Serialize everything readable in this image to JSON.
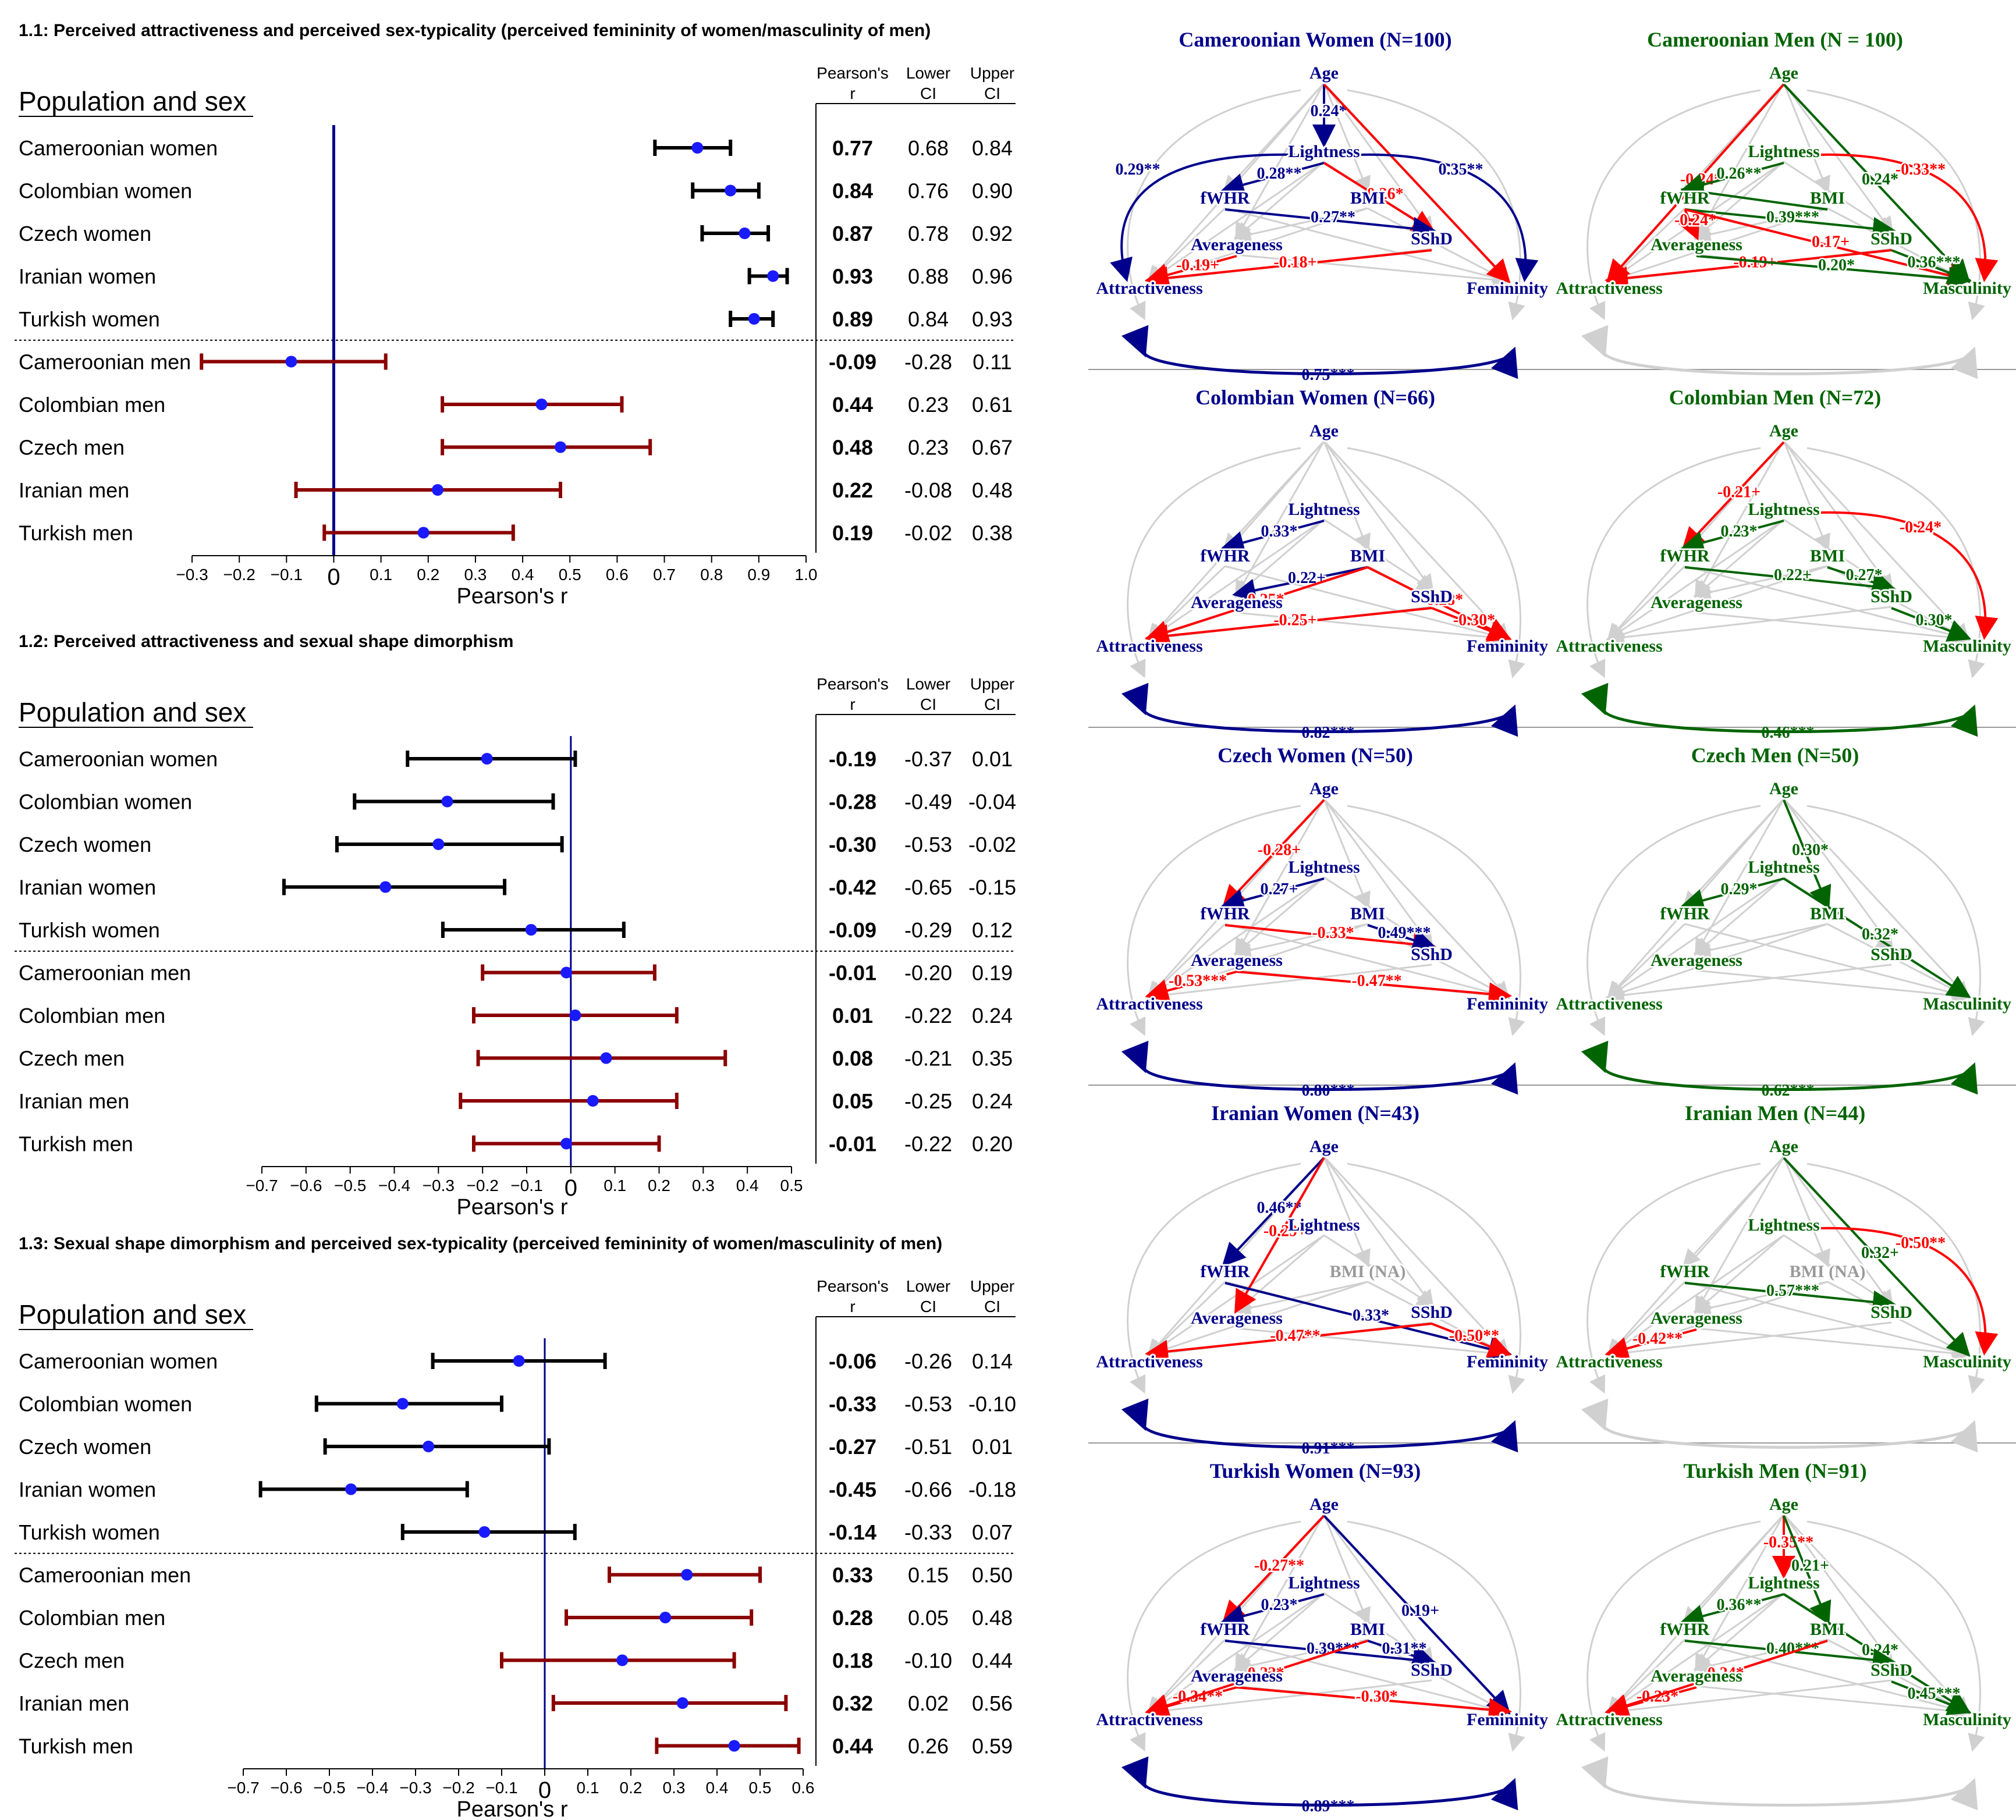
{
  "forest_panels": [
    {
      "title": "1.1: Perceived attractiveness and perceived sex-typicality (perceived femininity of women/masculinity of men)",
      "heading": "Population and sex",
      "xlabel": "Pearson's r",
      "xmin": -0.3,
      "xmax": 1.0,
      "ticks": [
        "−0.3",
        "−0.2",
        "−0.1",
        "0",
        "0.1",
        "0.2",
        "0.3",
        "0.4",
        "0.5",
        "0.6",
        "0.7",
        "0.8",
        "0.9",
        "1.0"
      ],
      "col_r": [
        "Pearson's",
        "r"
      ],
      "col_lo": [
        "Lower",
        "CI"
      ],
      "col_hi": [
        "Upper",
        "CI"
      ],
      "rows": [
        {
          "label": "Cameroonian women",
          "r": "0.77",
          "lo": "0.68",
          "hi": "0.84",
          "sex": "f"
        },
        {
          "label": "Colombian women",
          "r": "0.84",
          "lo": "0.76",
          "hi": "0.90",
          "sex": "f"
        },
        {
          "label": "Czech women",
          "r": "0.87",
          "lo": "0.78",
          "hi": "0.92",
          "sex": "f"
        },
        {
          "label": "Iranian women",
          "r": "0.93",
          "lo": "0.88",
          "hi": "0.96",
          "sex": "f"
        },
        {
          "label": "Turkish women",
          "r": "0.89",
          "lo": "0.84",
          "hi": "0.93",
          "sex": "f"
        },
        {
          "label": "Cameroonian men",
          "r": "-0.09",
          "lo": "-0.28",
          "hi": "0.11",
          "sex": "m"
        },
        {
          "label": "Colombian men",
          "r": "0.44",
          "lo": "0.23",
          "hi": "0.61",
          "sex": "m"
        },
        {
          "label": "Czech men",
          "r": "0.48",
          "lo": "0.23",
          "hi": "0.67",
          "sex": "m"
        },
        {
          "label": "Iranian men",
          "r": "0.22",
          "lo": "-0.08",
          "hi": "0.48",
          "sex": "m"
        },
        {
          "label": "Turkish men",
          "r": "0.19",
          "lo": "-0.02",
          "hi": "0.38",
          "sex": "m"
        }
      ]
    },
    {
      "title": "1.2: Perceived attractiveness and sexual shape dimorphism",
      "heading": "Population and sex",
      "xlabel": "Pearson's r",
      "xmin": -0.7,
      "xmax": 0.5,
      "ticks": [
        "−0.7",
        "−0.6",
        "−0.5",
        "−0.4",
        "−0.3",
        "−0.2",
        "−0.1",
        "0",
        "0.1",
        "0.2",
        "0.3",
        "0.4",
        "0.5"
      ],
      "col_r": [
        "Pearson's",
        "r"
      ],
      "col_lo": [
        "Lower",
        "CI"
      ],
      "col_hi": [
        "Upper",
        "CI"
      ],
      "rows": [
        {
          "label": "Cameroonian women",
          "r": "-0.19",
          "lo": "-0.37",
          "hi": "0.01",
          "sex": "f"
        },
        {
          "label": "Colombian women",
          "r": "-0.28",
          "lo": "-0.49",
          "hi": "-0.04",
          "sex": "f"
        },
        {
          "label": "Czech women",
          "r": "-0.30",
          "lo": "-0.53",
          "hi": "-0.02",
          "sex": "f"
        },
        {
          "label": "Iranian women",
          "r": "-0.42",
          "lo": "-0.65",
          "hi": "-0.15",
          "sex": "f"
        },
        {
          "label": "Turkish women",
          "r": "-0.09",
          "lo": "-0.29",
          "hi": "0.12",
          "sex": "f"
        },
        {
          "label": "Cameroonian men",
          "r": "-0.01",
          "lo": "-0.20",
          "hi": "0.19",
          "sex": "m"
        },
        {
          "label": "Colombian men",
          "r": "0.01",
          "lo": "-0.22",
          "hi": "0.24",
          "sex": "m"
        },
        {
          "label": "Czech men",
          "r": "0.08",
          "lo": "-0.21",
          "hi": "0.35",
          "sex": "m"
        },
        {
          "label": "Iranian men",
          "r": "0.05",
          "lo": "-0.25",
          "hi": "0.24",
          "sex": "m"
        },
        {
          "label": "Turkish men",
          "r": "-0.01",
          "lo": "-0.22",
          "hi": "0.20",
          "sex": "m"
        }
      ]
    },
    {
      "title": "1.3: Sexual shape dimorphism and perceived sex-typicality (perceived femininity of women/masculinity of men)",
      "heading": "Population and sex",
      "xlabel": "Pearson's r",
      "xmin": -0.7,
      "xmax": 0.6,
      "ticks": [
        "−0.7",
        "−0.6",
        "−0.5",
        "−0.4",
        "−0.3",
        "−0.2",
        "−0.1",
        "0",
        "0.1",
        "0.2",
        "0.3",
        "0.4",
        "0.5",
        "0.6"
      ],
      "col_r": [
        "Pearson's",
        "r"
      ],
      "col_lo": [
        "Lower",
        "CI"
      ],
      "col_hi": [
        "Upper",
        "CI"
      ],
      "rows": [
        {
          "label": "Cameroonian women",
          "r": "-0.06",
          "lo": "-0.26",
          "hi": "0.14",
          "sex": "f"
        },
        {
          "label": "Colombian women",
          "r": "-0.33",
          "lo": "-0.53",
          "hi": "-0.10",
          "sex": "f"
        },
        {
          "label": "Czech women",
          "r": "-0.27",
          "lo": "-0.51",
          "hi": "0.01",
          "sex": "f"
        },
        {
          "label": "Iranian women",
          "r": "-0.45",
          "lo": "-0.66",
          "hi": "-0.18",
          "sex": "f"
        },
        {
          "label": "Turkish women",
          "r": "-0.14",
          "lo": "-0.33",
          "hi": "0.07",
          "sex": "f"
        },
        {
          "label": "Cameroonian men",
          "r": "0.33",
          "lo": "0.15",
          "hi": "0.50",
          "sex": "m"
        },
        {
          "label": "Colombian men",
          "r": "0.28",
          "lo": "0.05",
          "hi": "0.48",
          "sex": "m"
        },
        {
          "label": "Czech men",
          "r": "0.18",
          "lo": "-0.10",
          "hi": "0.44",
          "sex": "m"
        },
        {
          "label": "Iranian men",
          "r": "0.32",
          "lo": "0.02",
          "hi": "0.56",
          "sex": "m"
        },
        {
          "label": "Turkish men",
          "r": "0.44",
          "lo": "0.26",
          "hi": "0.59",
          "sex": "m"
        }
      ]
    }
  ],
  "path_diagrams": [
    {
      "title": "Cameroonian Women (N=100)",
      "sex": "f",
      "outcome": "Femininity",
      "bma": "BMI",
      "edges": [
        {
          "from": "age",
          "to": "lightness",
          "label": "0.24*",
          "c": "b"
        },
        {
          "from": "age",
          "to": "outcome",
          "label": "",
          "c": "r"
        },
        {
          "from": "lightness",
          "to": "fwhr",
          "label": "0.28**",
          "c": "b"
        },
        {
          "from": "lightness",
          "to": "attr",
          "label": "0.29**",
          "c": "b",
          "curve": "left"
        },
        {
          "from": "lightness",
          "to": "outcome",
          "label": "0.35**",
          "c": "b",
          "curve": "right"
        },
        {
          "from": "lightness",
          "to": "sshd",
          "label": "-0.26*",
          "c": "r"
        },
        {
          "from": "fwhr",
          "to": "sshd",
          "label": "0.27**",
          "c": "b"
        },
        {
          "from": "avg",
          "to": "attr",
          "label": "-0.19+",
          "c": "r"
        },
        {
          "from": "sshd",
          "to": "attr",
          "label": "-0.18+",
          "c": "r"
        }
      ],
      "cov": "0.75***"
    },
    {
      "title": "Cameroonian Men (N = 100)",
      "sex": "m",
      "outcome": "Masculinity",
      "bma": "BMI",
      "edges": [
        {
          "from": "age",
          "to": "attr",
          "label": "-0.24*",
          "c": "r"
        },
        {
          "from": "age",
          "to": "outcome",
          "label": "0.24*",
          "c": "g"
        },
        {
          "from": "lightness",
          "to": "fwhr",
          "label": "0.26**",
          "c": "g"
        },
        {
          "from": "lightness",
          "to": "outcome",
          "label": "-0.33**",
          "c": "r",
          "curve": "right"
        },
        {
          "from": "bmi",
          "to": "fwhr",
          "label": "",
          "c": "g"
        },
        {
          "from": "fwhr",
          "to": "sshd",
          "label": "0.39***",
          "c": "g"
        },
        {
          "from": "fwhr",
          "to": "avg",
          "label": "-0.24*",
          "c": "r"
        },
        {
          "from": "fwhr",
          "to": "outcome",
          "label": "0.17+",
          "c": "r"
        },
        {
          "from": "sshd",
          "to": "attr",
          "label": "-0.19+",
          "c": "r"
        },
        {
          "from": "sshd",
          "to": "outcome",
          "label": "0.36***",
          "c": "g"
        },
        {
          "from": "avg",
          "to": "outcome",
          "label": "0.20*",
          "c": "g"
        }
      ],
      "cov": ""
    },
    {
      "title": "Colombian Women (N=66)",
      "sex": "f",
      "outcome": "Femininity",
      "bma": "BMI",
      "edges": [
        {
          "from": "lightness",
          "to": "fwhr",
          "label": "0.33*",
          "c": "b"
        },
        {
          "from": "bmi",
          "to": "avg",
          "label": "0.22+",
          "c": "b"
        },
        {
          "from": "sshd",
          "to": "attr",
          "label": "-0.25+",
          "c": "r"
        },
        {
          "from": "bmi",
          "to": "outcome",
          "label": "-0.28*",
          "c": "r"
        },
        {
          "from": "bmi",
          "to": "attr",
          "label": "-0.25*",
          "c": "r"
        },
        {
          "from": "sshd",
          "to": "outcome",
          "label": "-0.30*",
          "c": "r"
        }
      ],
      "cov": "0.82***"
    },
    {
      "title": "Colombian Men (N=72)",
      "sex": "m",
      "outcome": "Masculinity",
      "bma": "BMI",
      "edges": [
        {
          "from": "age",
          "to": "fwhr",
          "label": "-0.21+",
          "c": "r"
        },
        {
          "from": "lightness",
          "to": "fwhr",
          "label": "0.23*",
          "c": "g"
        },
        {
          "from": "lightness",
          "to": "outcome",
          "label": "-0.24*",
          "c": "r",
          "curve": "right"
        },
        {
          "from": "fwhr",
          "to": "sshd",
          "label": "0.22+",
          "c": "g"
        },
        {
          "from": "bmi",
          "to": "sshd",
          "label": "0.27*",
          "c": "g"
        },
        {
          "from": "sshd",
          "to": "outcome",
          "label": "0.30*",
          "c": "g"
        }
      ],
      "cov": "0.46***"
    },
    {
      "title": "Czech Women (N=50)",
      "sex": "f",
      "outcome": "Femininity",
      "bma": "BMI",
      "edges": [
        {
          "from": "age",
          "to": "fwhr",
          "label": "-0.28+",
          "c": "r"
        },
        {
          "from": "lightness",
          "to": "fwhr",
          "label": "0.27+",
          "c": "b"
        },
        {
          "from": "fwhr",
          "to": "sshd",
          "label": "-0.33*",
          "c": "r"
        },
        {
          "from": "bmi",
          "to": "sshd",
          "label": "0.49***",
          "c": "b"
        },
        {
          "from": "avg",
          "to": "outcome",
          "label": "-0.47**",
          "c": "r"
        },
        {
          "from": "avg",
          "to": "attr",
          "label": "-0.53***",
          "c": "r"
        }
      ],
      "cov": "0.80***"
    },
    {
      "title": "Czech Men (N=50)",
      "sex": "m",
      "outcome": "Masculinity",
      "bma": "BMI",
      "edges": [
        {
          "from": "age",
          "to": "bmi",
          "label": "0.30*",
          "c": "g"
        },
        {
          "from": "lightness",
          "to": "fwhr",
          "label": "0.29*",
          "c": "g"
        },
        {
          "from": "lightness",
          "to": "outcome",
          "label": "0.32*",
          "c": "g"
        }
      ],
      "cov": "0.62***"
    },
    {
      "title": "Iranian Women (N=43)",
      "sex": "f",
      "outcome": "Femininity",
      "bma": "BMI (NA)",
      "edges": [
        {
          "from": "age",
          "to": "fwhr",
          "label": "0.46**",
          "c": "b"
        },
        {
          "from": "age",
          "to": "avg",
          "label": "-0.29+",
          "c": "r"
        },
        {
          "from": "fwhr",
          "to": "outcome",
          "label": "0.33*",
          "c": "b"
        },
        {
          "from": "sshd",
          "to": "attr",
          "label": "-0.47**",
          "c": "r"
        },
        {
          "from": "sshd",
          "to": "outcome",
          "label": "-0.50**",
          "c": "r"
        }
      ],
      "cov": "0.91***"
    },
    {
      "title": "Iranian Men (N=44)",
      "sex": "m",
      "outcome": "Masculinity",
      "bma": "BMI (NA)",
      "edges": [
        {
          "from": "age",
          "to": "outcome",
          "label": "0.32+",
          "c": "g"
        },
        {
          "from": "lightness",
          "to": "outcome",
          "label": "-0.50**",
          "c": "r",
          "curve": "right"
        },
        {
          "from": "fwhr",
          "to": "sshd",
          "label": "0.57***",
          "c": "g"
        },
        {
          "from": "avg",
          "to": "attr",
          "label": "-0.42**",
          "c": "r"
        }
      ],
      "cov": ""
    },
    {
      "title": "Turkish Women (N=93)",
      "sex": "f",
      "outcome": "Femininity",
      "bma": "BMI",
      "edges": [
        {
          "from": "age",
          "to": "fwhr",
          "label": "-0.27**",
          "c": "r"
        },
        {
          "from": "age",
          "to": "outcome",
          "label": "0.19+",
          "c": "b"
        },
        {
          "from": "lightness",
          "to": "fwhr",
          "label": "0.23*",
          "c": "b"
        },
        {
          "from": "fwhr",
          "to": "sshd",
          "label": "0.39***",
          "c": "b"
        },
        {
          "from": "bmi",
          "to": "sshd",
          "label": "0.31**",
          "c": "b"
        },
        {
          "from": "avg",
          "to": "outcome",
          "label": "-0.30*",
          "c": "r"
        },
        {
          "from": "avg",
          "to": "attr",
          "label": "-0.34**",
          "c": "r"
        },
        {
          "from": "bmi",
          "to": "attr",
          "label": "-0.22*",
          "c": "r"
        }
      ],
      "cov": "0.89***"
    },
    {
      "title": "Turkish Men (N=91)",
      "sex": "m",
      "outcome": "Masculinity",
      "bma": "BMI",
      "edges": [
        {
          "from": "age",
          "to": "lightness",
          "label": "-0.35**",
          "c": "r"
        },
        {
          "from": "age",
          "to": "bmi",
          "label": "0.21+",
          "c": "g"
        },
        {
          "from": "lightness",
          "to": "fwhr",
          "label": "0.36**",
          "c": "g"
        },
        {
          "from": "lightness",
          "to": "outcome",
          "label": "0.24*",
          "c": "g"
        },
        {
          "from": "fwhr",
          "to": "sshd",
          "label": "0.40***",
          "c": "g"
        },
        {
          "from": "sshd",
          "to": "outcome",
          "label": "0.45***",
          "c": "g"
        },
        {
          "from": "avg",
          "to": "attr",
          "label": "-0.23*",
          "c": "r"
        },
        {
          "from": "bmi",
          "to": "attr",
          "label": "-0.24*",
          "c": "r"
        }
      ],
      "cov": ""
    }
  ],
  "node_labels": {
    "age": "Age",
    "lightness": "Lightness",
    "fwhr": "fWHR",
    "avg": "Averageness",
    "sshd": "SShD",
    "attr": "Attractiveness"
  },
  "colors": {
    "female_bar": "#000000",
    "male_bar": "#8b0000",
    "point": "#1a1aff",
    "zero_line": "#00008b",
    "blue": "#00008b",
    "green": "#006400",
    "red": "#ff0000",
    "grey": "#d0d0d0"
  },
  "chart_data": [
    {
      "type": "scatter",
      "title": "1.1: Perceived attractiveness and perceived sex-typicality (perceived femininity of women/masculinity of men)",
      "xlabel": "Pearson's r",
      "xlim": [
        -0.3,
        1.0
      ],
      "categories": [
        "Cameroonian women",
        "Colombian women",
        "Czech women",
        "Iranian women",
        "Turkish women",
        "Cameroonian men",
        "Colombian men",
        "Czech men",
        "Iranian men",
        "Turkish men"
      ],
      "values": [
        0.77,
        0.84,
        0.87,
        0.93,
        0.89,
        -0.09,
        0.44,
        0.48,
        0.22,
        0.19
      ],
      "lower": [
        0.68,
        0.76,
        0.78,
        0.88,
        0.84,
        -0.28,
        0.23,
        0.23,
        -0.08,
        -0.02
      ],
      "upper": [
        0.84,
        0.9,
        0.92,
        0.96,
        0.93,
        0.11,
        0.61,
        0.67,
        0.48,
        0.38
      ]
    },
    {
      "type": "scatter",
      "title": "1.2: Perceived attractiveness and sexual shape dimorphism",
      "xlabel": "Pearson's r",
      "xlim": [
        -0.7,
        0.5
      ],
      "categories": [
        "Cameroonian women",
        "Colombian women",
        "Czech women",
        "Iranian women",
        "Turkish women",
        "Cameroonian men",
        "Colombian men",
        "Czech men",
        "Iranian men",
        "Turkish men"
      ],
      "values": [
        -0.19,
        -0.28,
        -0.3,
        -0.42,
        -0.09,
        -0.01,
        0.01,
        0.08,
        0.05,
        -0.01
      ],
      "lower": [
        -0.37,
        -0.49,
        -0.53,
        -0.65,
        -0.29,
        -0.2,
        -0.22,
        -0.21,
        -0.25,
        -0.22
      ],
      "upper": [
        0.01,
        -0.04,
        -0.02,
        -0.15,
        0.12,
        0.19,
        0.24,
        0.35,
        0.24,
        0.2
      ]
    },
    {
      "type": "scatter",
      "title": "1.3: Sexual shape dimorphism and perceived sex-typicality (perceived femininity of women/masculinity of men)",
      "xlabel": "Pearson's r",
      "xlim": [
        -0.7,
        0.6
      ],
      "categories": [
        "Cameroonian women",
        "Colombian women",
        "Czech women",
        "Iranian women",
        "Turkish women",
        "Cameroonian men",
        "Colombian men",
        "Czech men",
        "Iranian men",
        "Turkish men"
      ],
      "values": [
        -0.06,
        -0.33,
        -0.27,
        -0.45,
        -0.14,
        0.33,
        0.28,
        0.18,
        0.32,
        0.44
      ],
      "lower": [
        -0.26,
        -0.53,
        -0.51,
        -0.66,
        -0.33,
        0.15,
        0.05,
        -0.1,
        0.02,
        0.26
      ],
      "upper": [
        0.14,
        -0.1,
        0.01,
        -0.18,
        0.07,
        0.5,
        0.48,
        0.44,
        0.56,
        0.59
      ]
    }
  ]
}
